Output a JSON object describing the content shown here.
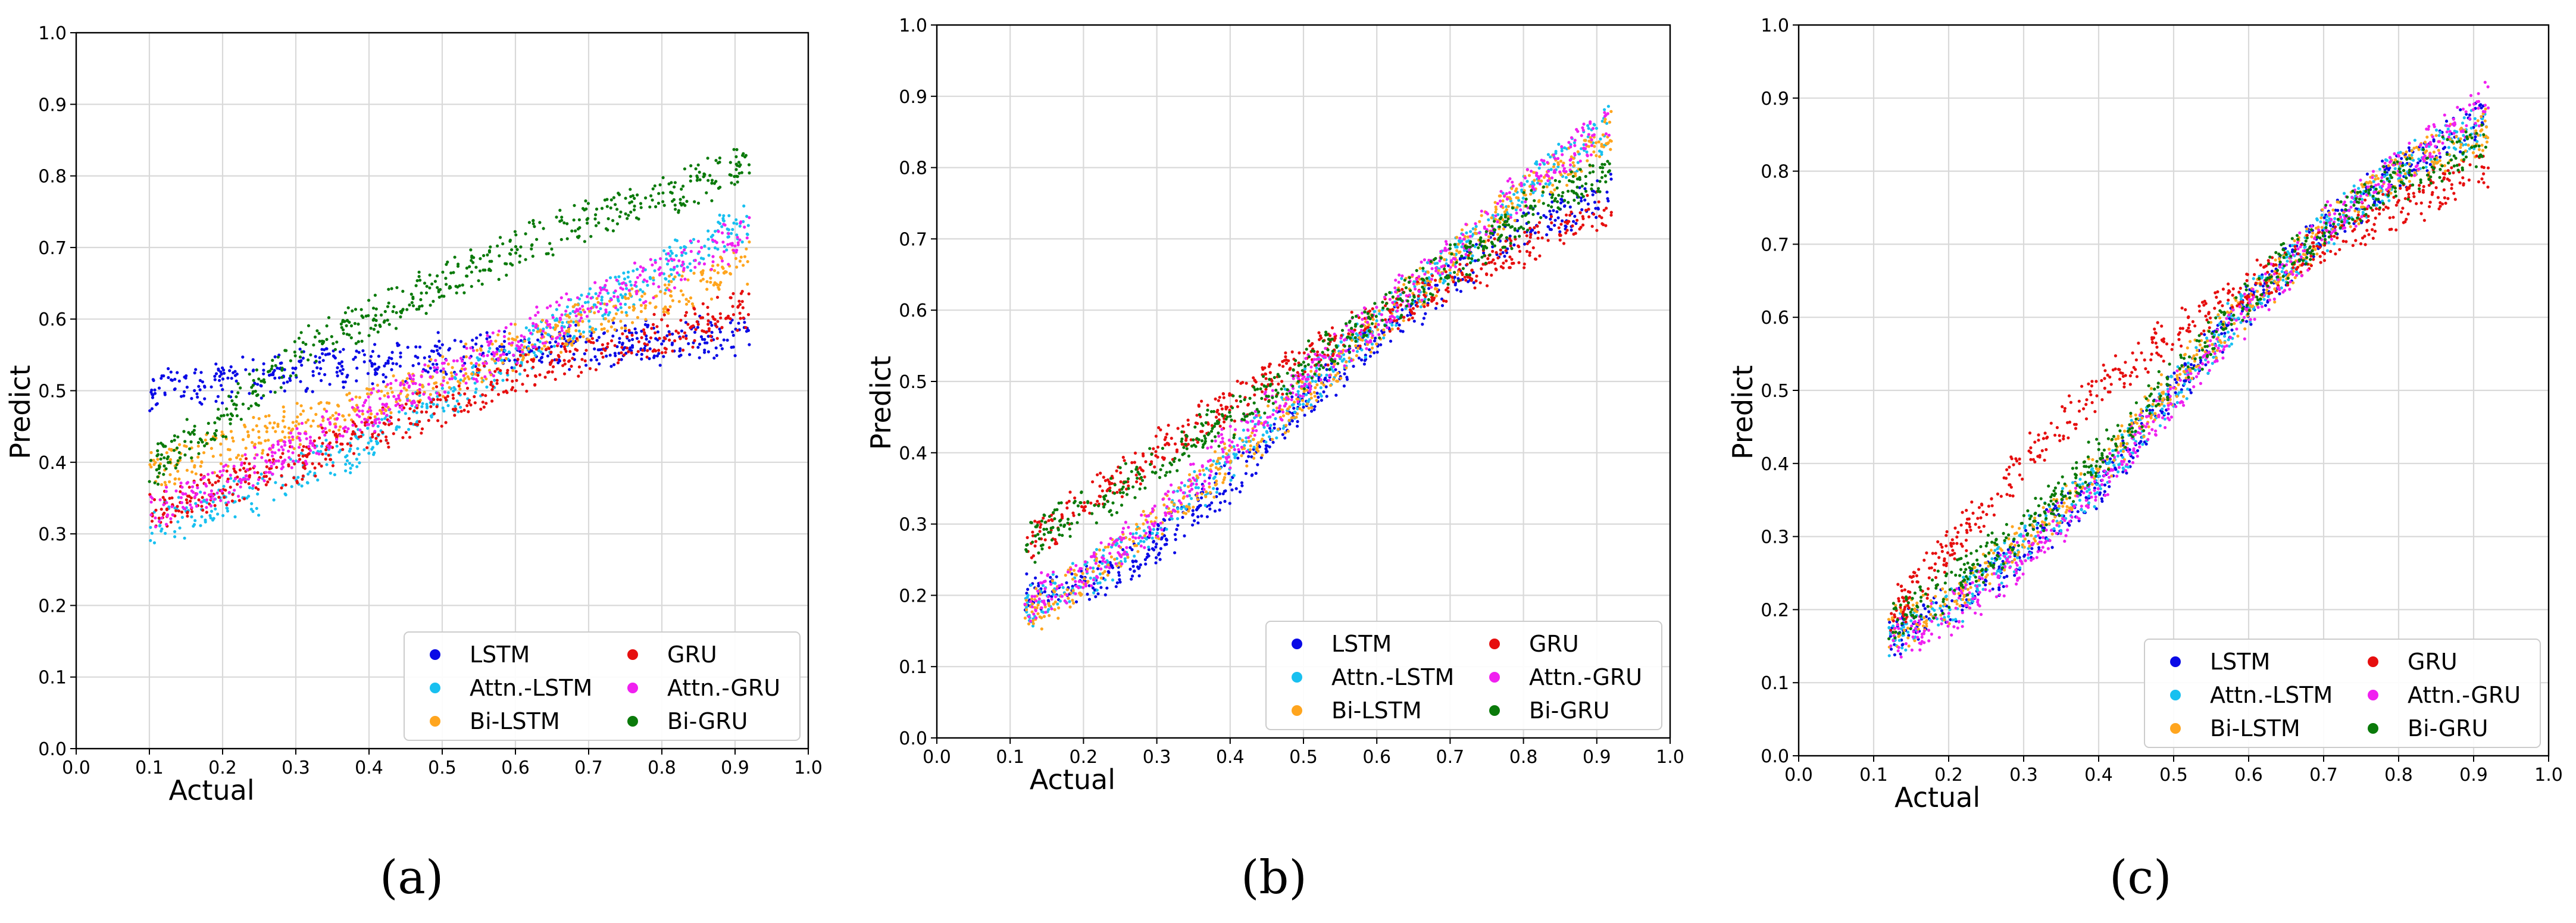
{
  "figure": {
    "panel_labels": [
      "(a)",
      "(b)",
      "(c)"
    ]
  },
  "legend_colors": {
    "LSTM": "#0a0ae6",
    "Attn.-LSTM": "#18c0f0",
    "Bi-LSTM": "#ffa51e",
    "GRU": "#e60f0f",
    "Attn.-GRU": "#f020f0",
    "Bi-GRU": "#0a7a0a"
  },
  "chart_data": [
    {
      "type": "scatter",
      "panel": "a",
      "xlabel": "Actual",
      "ylabel": "Predict",
      "xlim": [
        0.0,
        1.0
      ],
      "ylim": [
        0.0,
        1.0
      ],
      "xticks": [
        "0.0",
        "0.1",
        "0.2",
        "0.3",
        "0.4",
        "0.5",
        "0.6",
        "0.7",
        "0.8",
        "0.9",
        "1.0"
      ],
      "yticks": [
        "0.0",
        "0.1",
        "0.2",
        "0.3",
        "0.4",
        "0.5",
        "0.6",
        "0.7",
        "0.8",
        "0.9",
        "1.0"
      ],
      "grid": true,
      "legend": "bottom-right",
      "legend_entries": [
        "LSTM",
        "Attn.-LSTM",
        "Bi-LSTM",
        "GRU",
        "Attn.-GRU",
        "Bi-GRU"
      ],
      "series": [
        {
          "name": "LSTM",
          "color": "#0a0ae6",
          "x": [
            0.1,
            0.2,
            0.3,
            0.4,
            0.5,
            0.6,
            0.7,
            0.8,
            0.92
          ],
          "y": [
            0.505,
            0.515,
            0.527,
            0.538,
            0.548,
            0.556,
            0.563,
            0.569,
            0.575
          ]
        },
        {
          "name": "Attn.-LSTM",
          "color": "#18c0f0",
          "x": [
            0.1,
            0.2,
            0.3,
            0.4,
            0.5,
            0.6,
            0.7,
            0.8,
            0.92
          ],
          "y": [
            0.31,
            0.34,
            0.38,
            0.43,
            0.49,
            0.55,
            0.61,
            0.67,
            0.74
          ]
        },
        {
          "name": "Bi-LSTM",
          "color": "#ffa51e",
          "x": [
            0.1,
            0.2,
            0.3,
            0.4,
            0.5,
            0.6,
            0.7,
            0.8,
            0.92
          ],
          "y": [
            0.39,
            0.42,
            0.45,
            0.48,
            0.52,
            0.56,
            0.6,
            0.63,
            0.68
          ]
        },
        {
          "name": "GRU",
          "color": "#e60f0f",
          "x": [
            0.1,
            0.2,
            0.3,
            0.4,
            0.5,
            0.6,
            0.7,
            0.8,
            0.92
          ],
          "y": [
            0.33,
            0.36,
            0.4,
            0.44,
            0.48,
            0.52,
            0.55,
            0.58,
            0.615
          ]
        },
        {
          "name": "Attn.-GRU",
          "color": "#f020f0",
          "x": [
            0.1,
            0.2,
            0.3,
            0.4,
            0.5,
            0.6,
            0.7,
            0.8,
            0.92
          ],
          "y": [
            0.33,
            0.37,
            0.42,
            0.47,
            0.52,
            0.57,
            0.62,
            0.66,
            0.72
          ]
        },
        {
          "name": "Bi-GRU",
          "color": "#0a7a0a",
          "x": [
            0.1,
            0.2,
            0.3,
            0.4,
            0.5,
            0.6,
            0.7,
            0.8,
            0.92
          ],
          "y": [
            0.39,
            0.46,
            0.55,
            0.6,
            0.65,
            0.7,
            0.74,
            0.77,
            0.82
          ]
        }
      ]
    },
    {
      "type": "scatter",
      "panel": "b",
      "xlabel": "Actual",
      "ylabel": "Predict",
      "xlim": [
        0.0,
        1.0
      ],
      "ylim": [
        0.0,
        1.0
      ],
      "xticks": [
        "0.0",
        "0.1",
        "0.2",
        "0.3",
        "0.4",
        "0.5",
        "0.6",
        "0.7",
        "0.8",
        "0.9",
        "1.0"
      ],
      "yticks": [
        "0.0",
        "0.1",
        "0.2",
        "0.3",
        "0.4",
        "0.5",
        "0.6",
        "0.7",
        "0.8",
        "0.9",
        "1.0"
      ],
      "grid": true,
      "legend": "bottom-right",
      "legend_entries": [
        "LSTM",
        "Attn.-LSTM",
        "Bi-LSTM",
        "GRU",
        "Attn.-GRU",
        "Bi-GRU"
      ],
      "series": [
        {
          "name": "LSTM",
          "color": "#0a0ae6",
          "x": [
            0.12,
            0.2,
            0.3,
            0.4,
            0.5,
            0.6,
            0.7,
            0.8,
            0.92
          ],
          "y": [
            0.2,
            0.21,
            0.27,
            0.36,
            0.47,
            0.56,
            0.64,
            0.72,
            0.76
          ]
        },
        {
          "name": "Attn.-LSTM",
          "color": "#18c0f0",
          "x": [
            0.12,
            0.2,
            0.3,
            0.4,
            0.5,
            0.6,
            0.7,
            0.8,
            0.92
          ],
          "y": [
            0.18,
            0.22,
            0.3,
            0.39,
            0.49,
            0.58,
            0.67,
            0.77,
            0.86
          ]
        },
        {
          "name": "Bi-LSTM",
          "color": "#ffa51e",
          "x": [
            0.12,
            0.2,
            0.3,
            0.4,
            0.5,
            0.6,
            0.7,
            0.8,
            0.92
          ],
          "y": [
            0.17,
            0.22,
            0.3,
            0.39,
            0.48,
            0.58,
            0.67,
            0.76,
            0.85
          ]
        },
        {
          "name": "GRU",
          "color": "#e60f0f",
          "x": [
            0.12,
            0.2,
            0.3,
            0.4,
            0.5,
            0.6,
            0.7,
            0.8,
            0.92
          ],
          "y": [
            0.27,
            0.33,
            0.4,
            0.47,
            0.53,
            0.59,
            0.64,
            0.69,
            0.74
          ]
        },
        {
          "name": "Attn.-GRU",
          "color": "#f020f0",
          "x": [
            0.12,
            0.2,
            0.3,
            0.4,
            0.5,
            0.6,
            0.7,
            0.8,
            0.92
          ],
          "y": [
            0.19,
            0.23,
            0.31,
            0.41,
            0.5,
            0.59,
            0.68,
            0.77,
            0.87
          ]
        },
        {
          "name": "Bi-GRU",
          "color": "#0a7a0a",
          "x": [
            0.12,
            0.2,
            0.3,
            0.4,
            0.5,
            0.6,
            0.7,
            0.8,
            0.92
          ],
          "y": [
            0.27,
            0.32,
            0.38,
            0.45,
            0.52,
            0.59,
            0.66,
            0.73,
            0.8
          ]
        }
      ]
    },
    {
      "type": "scatter",
      "panel": "c",
      "xlabel": "Actual",
      "ylabel": "Predict",
      "xlim": [
        0.0,
        1.0
      ],
      "ylim": [
        0.0,
        1.0
      ],
      "xticks": [
        "0.0",
        "0.1",
        "0.2",
        "0.3",
        "0.4",
        "0.5",
        "0.6",
        "0.7",
        "0.8",
        "0.9",
        "1.0"
      ],
      "yticks": [
        "0.0",
        "0.1",
        "0.2",
        "0.3",
        "0.4",
        "0.5",
        "0.6",
        "0.7",
        "0.8",
        "0.9",
        "1.0"
      ],
      "grid": true,
      "legend": "bottom-right",
      "legend_entries": [
        "LSTM",
        "Attn.-LSTM",
        "Bi-LSTM",
        "GRU",
        "Attn.-GRU",
        "Bi-GRU"
      ],
      "series": [
        {
          "name": "LSTM",
          "color": "#0a0ae6",
          "x": [
            0.12,
            0.2,
            0.3,
            0.4,
            0.5,
            0.6,
            0.7,
            0.8,
            0.92
          ],
          "y": [
            0.16,
            0.2,
            0.28,
            0.37,
            0.5,
            0.62,
            0.72,
            0.8,
            0.88
          ]
        },
        {
          "name": "Attn.-LSTM",
          "color": "#18c0f0",
          "x": [
            0.12,
            0.2,
            0.3,
            0.4,
            0.5,
            0.6,
            0.7,
            0.8,
            0.92
          ],
          "y": [
            0.16,
            0.2,
            0.29,
            0.38,
            0.5,
            0.62,
            0.72,
            0.8,
            0.87
          ]
        },
        {
          "name": "Bi-LSTM",
          "color": "#ffa51e",
          "x": [
            0.12,
            0.2,
            0.3,
            0.4,
            0.5,
            0.6,
            0.7,
            0.8,
            0.92
          ],
          "y": [
            0.17,
            0.21,
            0.3,
            0.39,
            0.51,
            0.62,
            0.72,
            0.8,
            0.86
          ]
        },
        {
          "name": "GRU",
          "color": "#e60f0f",
          "x": [
            0.12,
            0.2,
            0.3,
            0.4,
            0.5,
            0.6,
            0.7,
            0.8,
            0.92
          ],
          "y": [
            0.19,
            0.28,
            0.4,
            0.5,
            0.58,
            0.64,
            0.7,
            0.75,
            0.81
          ]
        },
        {
          "name": "Attn.-GRU",
          "color": "#f020f0",
          "x": [
            0.12,
            0.2,
            0.3,
            0.4,
            0.5,
            0.6,
            0.7,
            0.8,
            0.92
          ],
          "y": [
            0.15,
            0.19,
            0.27,
            0.37,
            0.49,
            0.61,
            0.72,
            0.81,
            0.9
          ]
        },
        {
          "name": "Bi-GRU",
          "color": "#0a7a0a",
          "x": [
            0.12,
            0.2,
            0.3,
            0.4,
            0.5,
            0.6,
            0.7,
            0.8,
            0.92
          ],
          "y": [
            0.18,
            0.23,
            0.31,
            0.41,
            0.52,
            0.63,
            0.72,
            0.79,
            0.84
          ]
        }
      ]
    }
  ]
}
